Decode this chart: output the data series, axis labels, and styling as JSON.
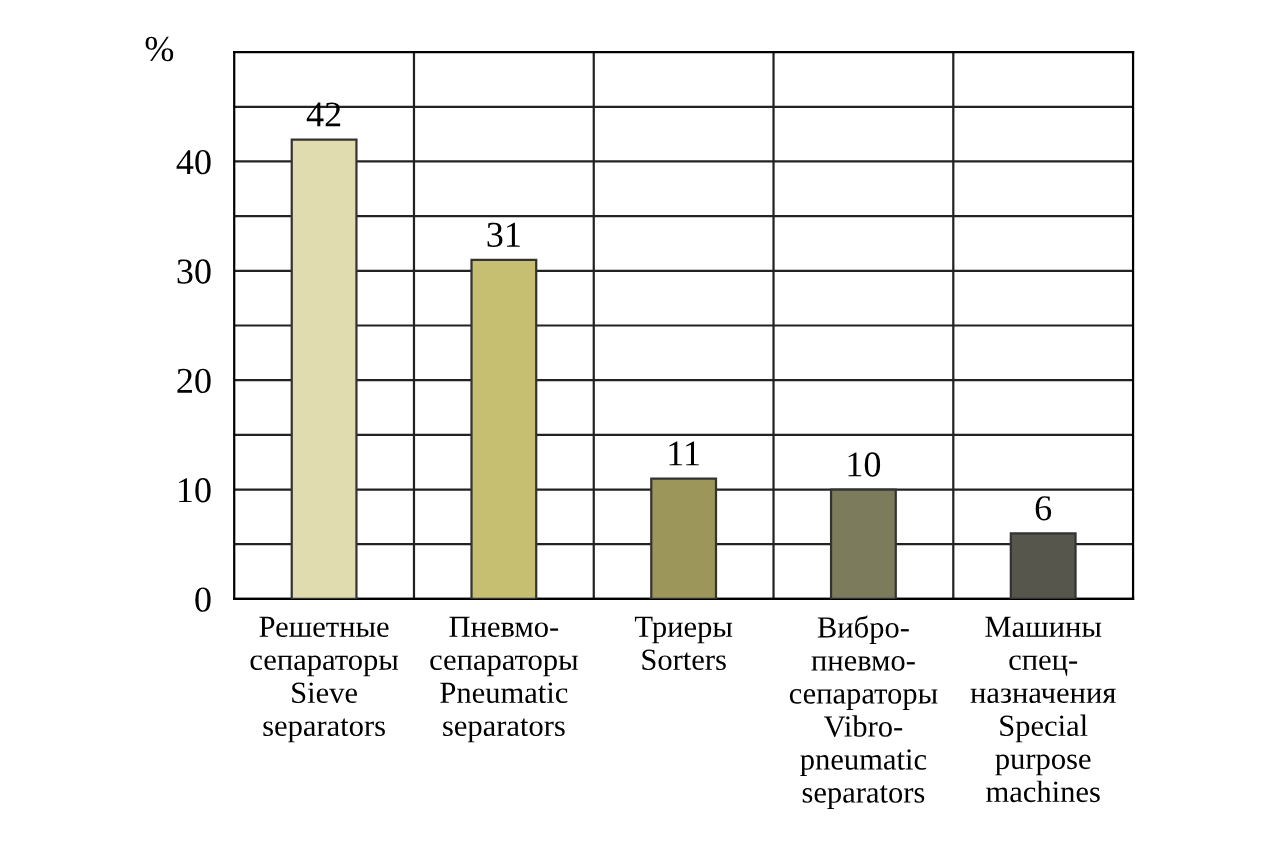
{
  "chart_data": {
    "type": "bar",
    "ylabel": "%",
    "categories": [
      "Решетные\nсепараторы\nSieve\nseparators",
      "Пневмо-\nсепараторы\nPneumatic\nseparators",
      "Триеры\nSorters",
      "Вибро-\nпневмо-\nсепараторы\nVibro-\npneumatic\nseparators",
      "Машины\nспец-\nназначения\nSpecial\npurpose\nmachines"
    ],
    "values": [
      42,
      31,
      11,
      10,
      6
    ],
    "colors": [
      "#e0dcb0",
      "#c6be70",
      "#9c965a",
      "#7c7c5c",
      "#56564c"
    ],
    "ylim": [
      0,
      50
    ],
    "yticks": [
      0,
      {
        "value": 5,
        "label": null
      },
      10,
      {
        "value": 15,
        "label": null
      },
      20,
      {
        "value": 25,
        "label": null
      },
      30,
      {
        "value": 35,
        "label": null
      },
      40,
      {
        "value": 45,
        "label": null
      }
    ],
    "grid": true,
    "data_labels": true,
    "legend": false
  }
}
